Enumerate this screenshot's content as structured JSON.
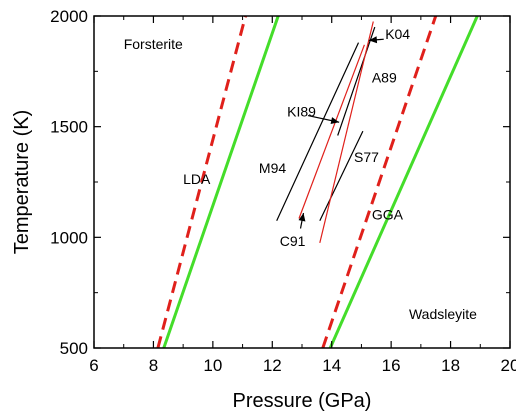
{
  "chart_data": {
    "type": "line",
    "title": "",
    "xlabel": "Pressure (GPa)",
    "ylabel": "Temperature (K)",
    "xlim": [
      6,
      20
    ],
    "ylim": [
      500,
      2000
    ],
    "xticks": [
      6,
      8,
      10,
      12,
      14,
      16,
      18,
      20
    ],
    "yticks": [
      500,
      1000,
      1500,
      2000
    ],
    "grid": false,
    "legend": "none",
    "series": [
      {
        "name": "LDA",
        "style": "dashed",
        "color": "#e0201b",
        "x": [
          8.15,
          11.1
        ],
        "y": [
          500,
          2000
        ]
      },
      {
        "name": "",
        "style": "solid",
        "color": "#44dd2a",
        "x": [
          8.35,
          12.2
        ],
        "y": [
          500,
          2000
        ]
      },
      {
        "name": "GGA",
        "style": "dashed",
        "color": "#e0201b",
        "x": [
          13.7,
          17.5
        ],
        "y": [
          500,
          2000
        ]
      },
      {
        "name": "",
        "style": "solid",
        "color": "#44dd2a",
        "x": [
          13.95,
          18.9
        ],
        "y": [
          500,
          2000
        ]
      },
      {
        "name": "M94",
        "style": "solid",
        "color": "#000000",
        "x": [
          12.15,
          14.9
        ],
        "y": [
          1075,
          1880
        ]
      },
      {
        "name": "KI89",
        "style": "solid",
        "color": "#000000",
        "x": [
          14.2,
          15.45
        ],
        "y": [
          1460,
          1950
        ]
      },
      {
        "name": "S77",
        "style": "solid",
        "color": "#000000",
        "x": [
          13.6,
          15.05
        ],
        "y": [
          1075,
          1480
        ]
      },
      {
        "name": "C91",
        "style": "solid",
        "color": "#e0201b",
        "x": [
          12.9,
          15.1
        ],
        "y": [
          1085,
          1870
        ]
      },
      {
        "name": "A89",
        "style": "solid",
        "color": "#e0201b",
        "x": [
          13.6,
          15.4
        ],
        "y": [
          975,
          1975
        ]
      }
    ],
    "annotations": [
      {
        "text": "Forsterite",
        "x": 7.0,
        "y": 1850
      },
      {
        "text": "Wadsleyite",
        "x": 16.6,
        "y": 630
      },
      {
        "text": "LDA",
        "x": 9.0,
        "y": 1240
      },
      {
        "text": "GGA",
        "x": 15.35,
        "y": 1080
      },
      {
        "text": "K04",
        "x": 15.8,
        "y": 1895
      },
      {
        "text": "A89",
        "x": 15.35,
        "y": 1700
      },
      {
        "text": "KI89",
        "x": 12.5,
        "y": 1545
      },
      {
        "text": "M94",
        "x": 11.55,
        "y": 1290
      },
      {
        "text": "S77",
        "x": 14.75,
        "y": 1340
      },
      {
        "text": "C91",
        "x": 12.25,
        "y": 960
      }
    ],
    "arrows": [
      {
        "label": "K04",
        "from": [
          15.75,
          1895
        ],
        "to": [
          15.25,
          1890
        ]
      },
      {
        "label": "KI89",
        "from": [
          13.2,
          1550
        ],
        "to": [
          14.25,
          1520
        ]
      },
      {
        "label": "C91",
        "from": [
          12.95,
          1040
        ],
        "to": [
          13.05,
          1110
        ]
      }
    ]
  }
}
